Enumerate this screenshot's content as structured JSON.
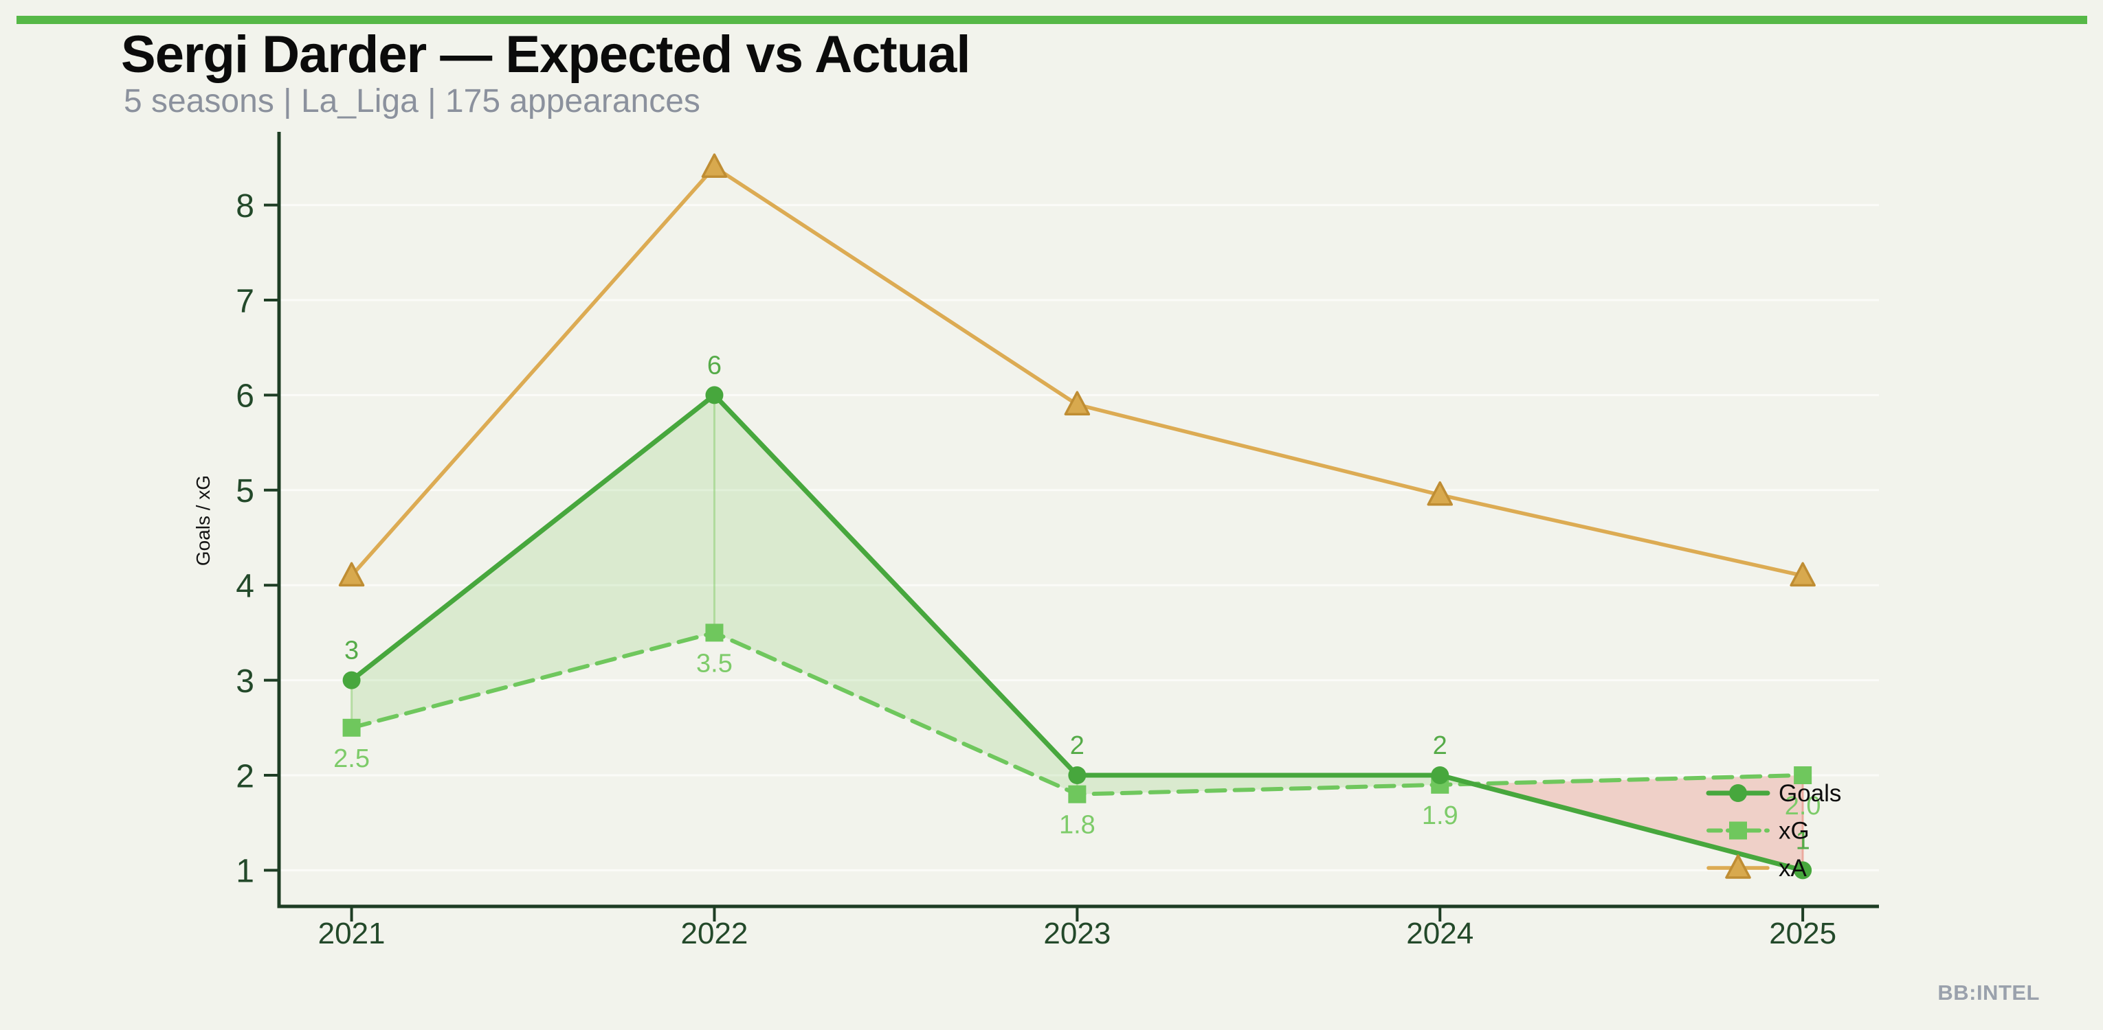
{
  "page": {
    "background": "#f2f3ec",
    "topbar_color": "#56b847"
  },
  "header": {
    "title": "Sergi Darder — Expected vs Actual",
    "subtitle": "5 seasons | La_Liga | 175 appearances"
  },
  "watermark": "BB:INTEL",
  "chart_data": {
    "type": "line",
    "title": "Sergi Darder — Expected vs Actual",
    "xlabel": "",
    "ylabel": "Goals / xG",
    "categories": [
      2021,
      2022,
      2023,
      2024,
      2025
    ],
    "x_tick_labels": [
      "2021",
      "2022",
      "2023",
      "2024",
      "2025"
    ],
    "y_ticks": [
      1,
      2,
      3,
      4,
      5,
      6,
      7,
      8
    ],
    "xlim": [
      2020.8,
      2025.21
    ],
    "ylim": [
      0.62,
      8.77
    ],
    "grid": "horizontal-faint",
    "legend_position": "lower-right-inside",
    "series": [
      {
        "name": "Goals",
        "values": [
          3,
          6,
          2,
          2,
          1
        ],
        "point_labels": [
          "3",
          "6",
          "2",
          "2",
          "1"
        ],
        "label_placement": "above",
        "color": "#47a73d",
        "label_color": "#55ab48",
        "line_style": "solid",
        "line_width": 7,
        "marker": "circle"
      },
      {
        "name": "xG",
        "values": [
          2.5,
          3.5,
          1.8,
          1.9,
          2.0
        ],
        "point_labels": [
          "2.5",
          "3.5",
          "1.8",
          "1.9",
          "2.0"
        ],
        "label_placement": "below",
        "color": "#6fc75d",
        "label_color": "#7dcb69",
        "line_style": "dashed",
        "line_width": 6,
        "marker": "square"
      },
      {
        "name": "xA",
        "values": [
          4.1,
          8.4,
          5.9,
          4.95,
          4.1
        ],
        "point_labels": null,
        "label_placement": "none",
        "color": "#dcab53",
        "marker_fill": "#d8a94e",
        "marker_stroke": "#bf8d33",
        "line_style": "solid",
        "line_width": 5.5,
        "marker": "triangle"
      }
    ],
    "fill_between": {
      "series_a": "Goals",
      "series_b": "xG",
      "above_color": "rgba(125,202,95,0.20)",
      "below_color": "rgba(231,128,115,0.30)",
      "above_edge_color": "rgba(125,202,95,0.45)",
      "below_edge_color": "rgba(231,128,115,0.55)"
    },
    "style": {
      "axis_color": "#1e3d24",
      "tick_label_color": "#23492a",
      "grid_color": "rgba(255,255,255,0.65)",
      "legend_text_color": "#0d0d0d",
      "y_axis_label_color": "#141414"
    }
  }
}
